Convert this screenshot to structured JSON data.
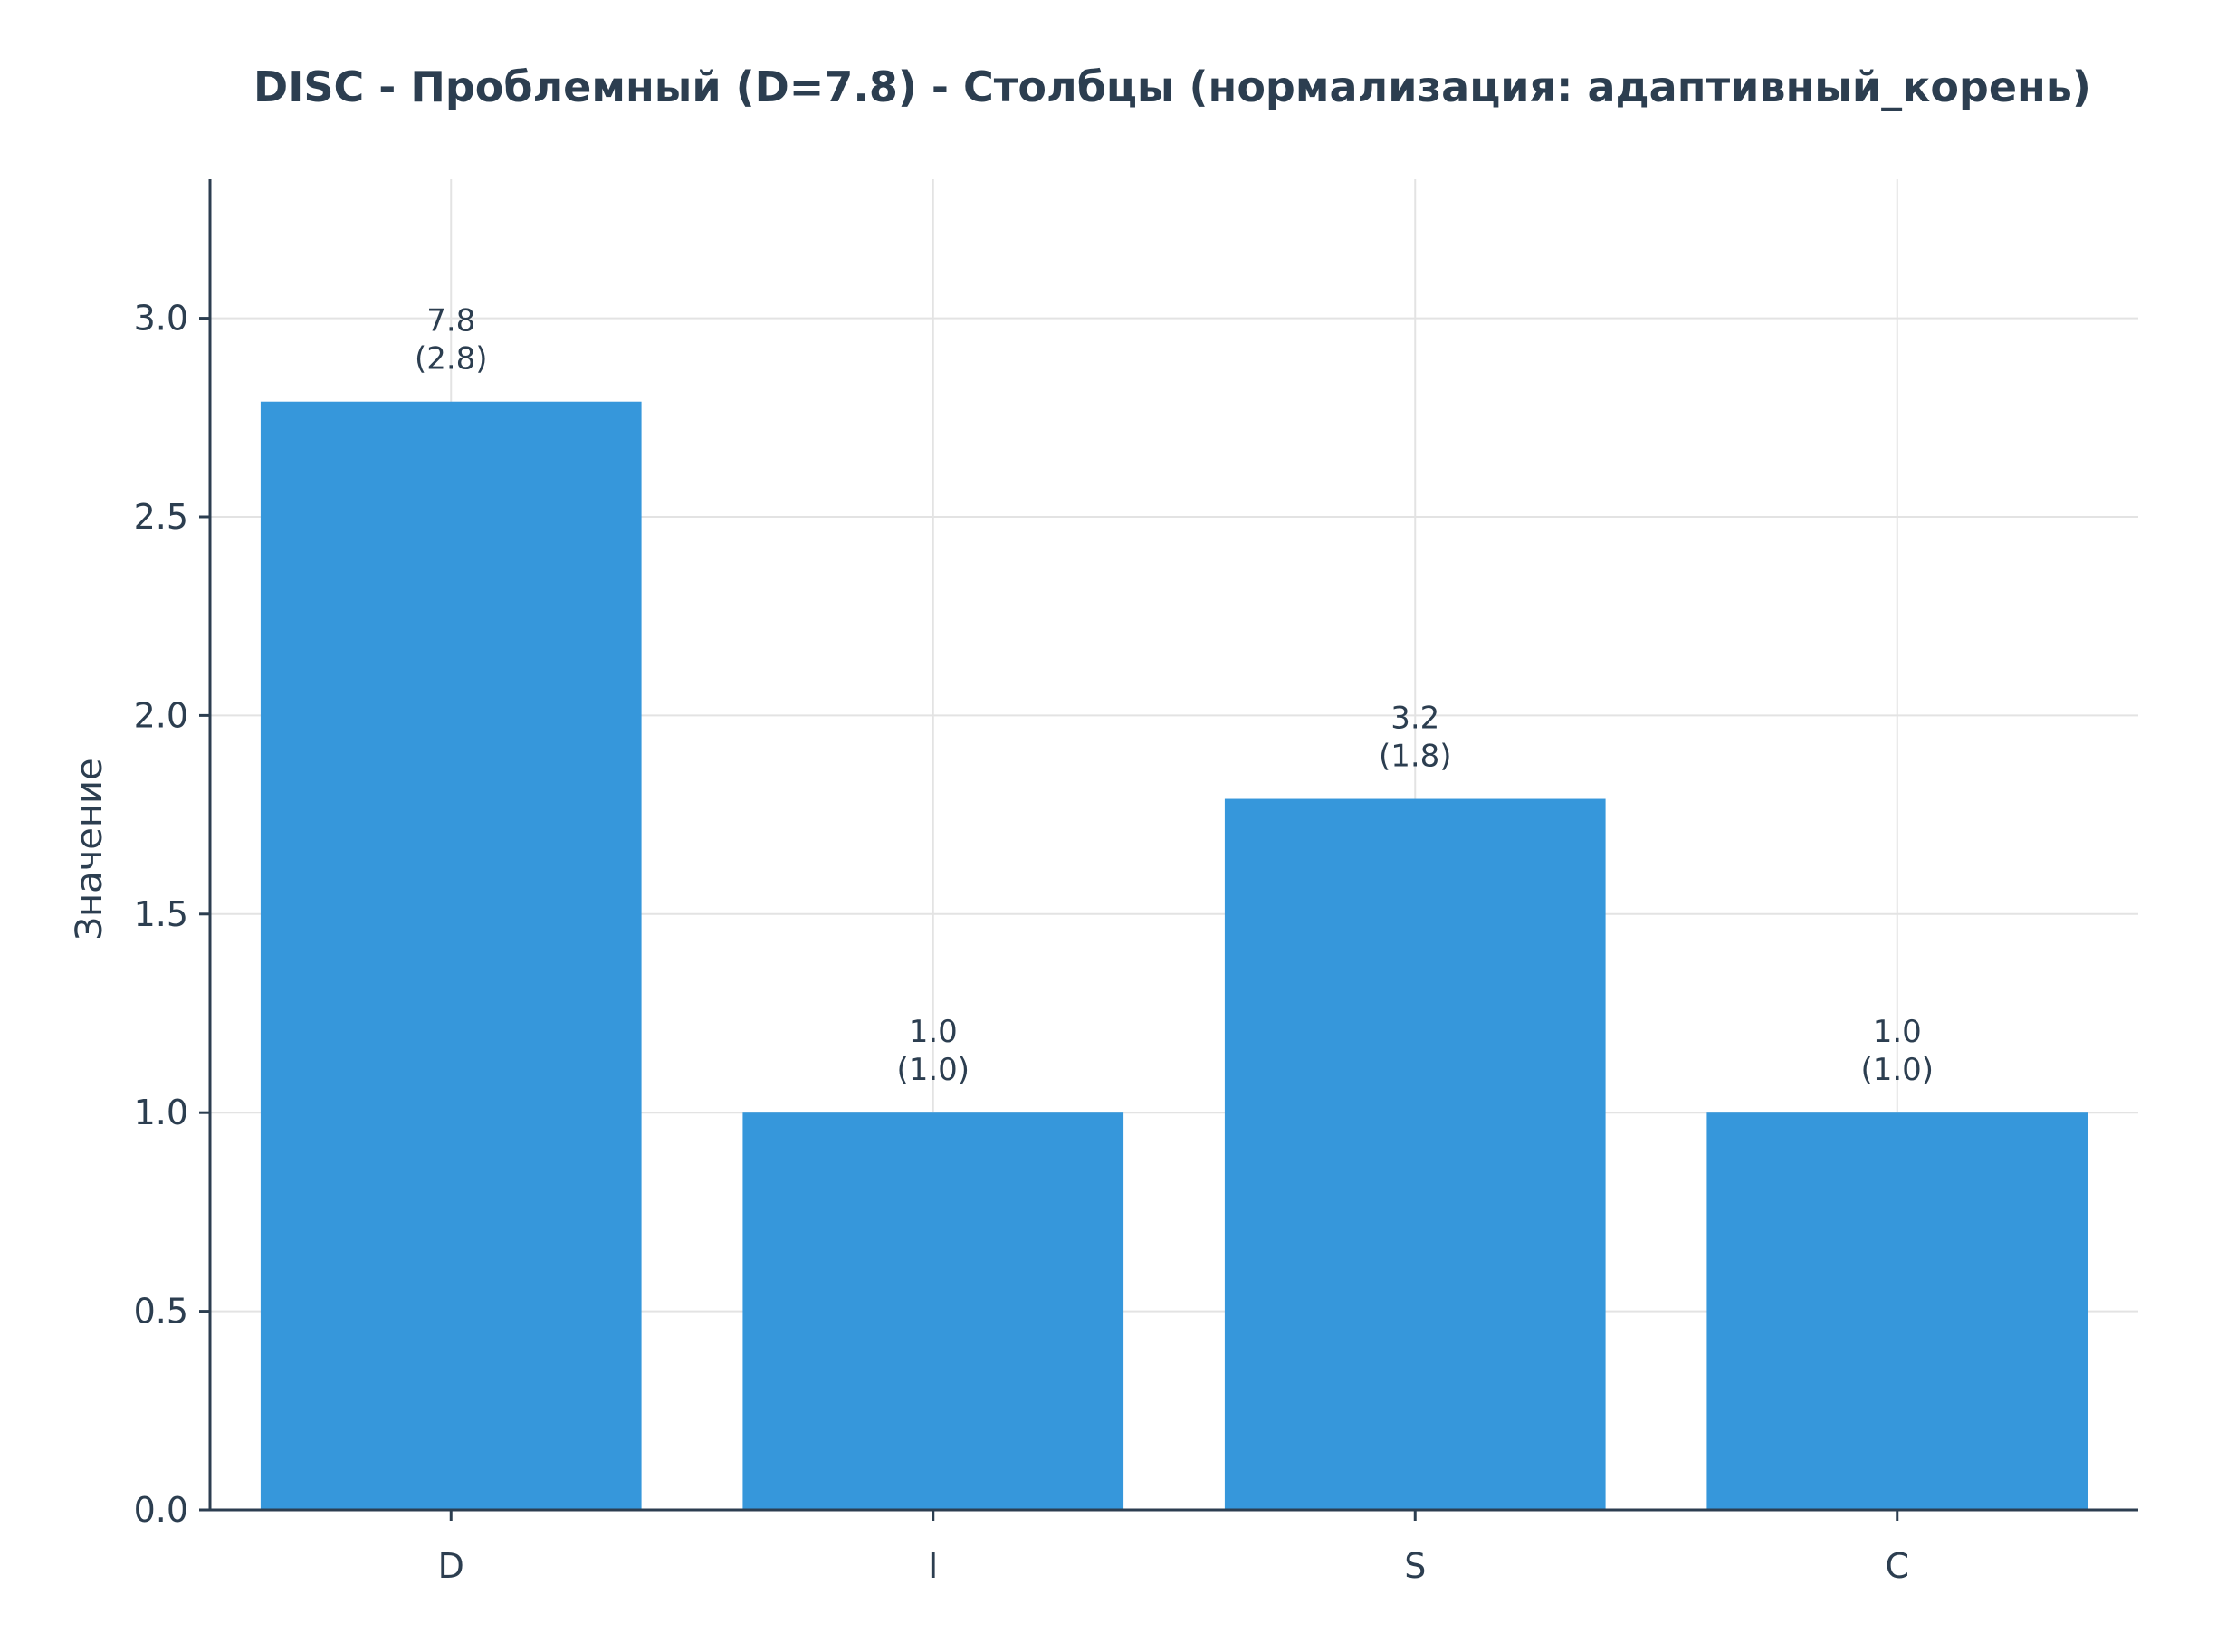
{
  "chart_data": {
    "type": "bar",
    "title": "DISC - Проблемный (D=7.8) - Столбцы (нормализация: адаптивный_корень)",
    "xlabel": "",
    "ylabel": "Значение",
    "categories": [
      "D",
      "I",
      "S",
      "C"
    ],
    "values": [
      2.79,
      1.0,
      1.79,
      1.0
    ],
    "raw_labels": [
      "7.8",
      "1.0",
      "3.2",
      "1.0"
    ],
    "norm_labels": [
      "(2.8)",
      "(1.0)",
      "(1.8)",
      "(1.0)"
    ],
    "ylim": [
      0,
      3.35
    ],
    "yticks": [
      0.0,
      0.5,
      1.0,
      1.5,
      2.0,
      2.5,
      3.0
    ],
    "ytick_labels": [
      "0.0",
      "0.5",
      "1.0",
      "1.5",
      "2.0",
      "2.5",
      "3.0"
    ],
    "grid": true,
    "colors": {
      "bar": "#3697db",
      "text": "#2c3e50",
      "grid": "#e3e3e3"
    }
  }
}
